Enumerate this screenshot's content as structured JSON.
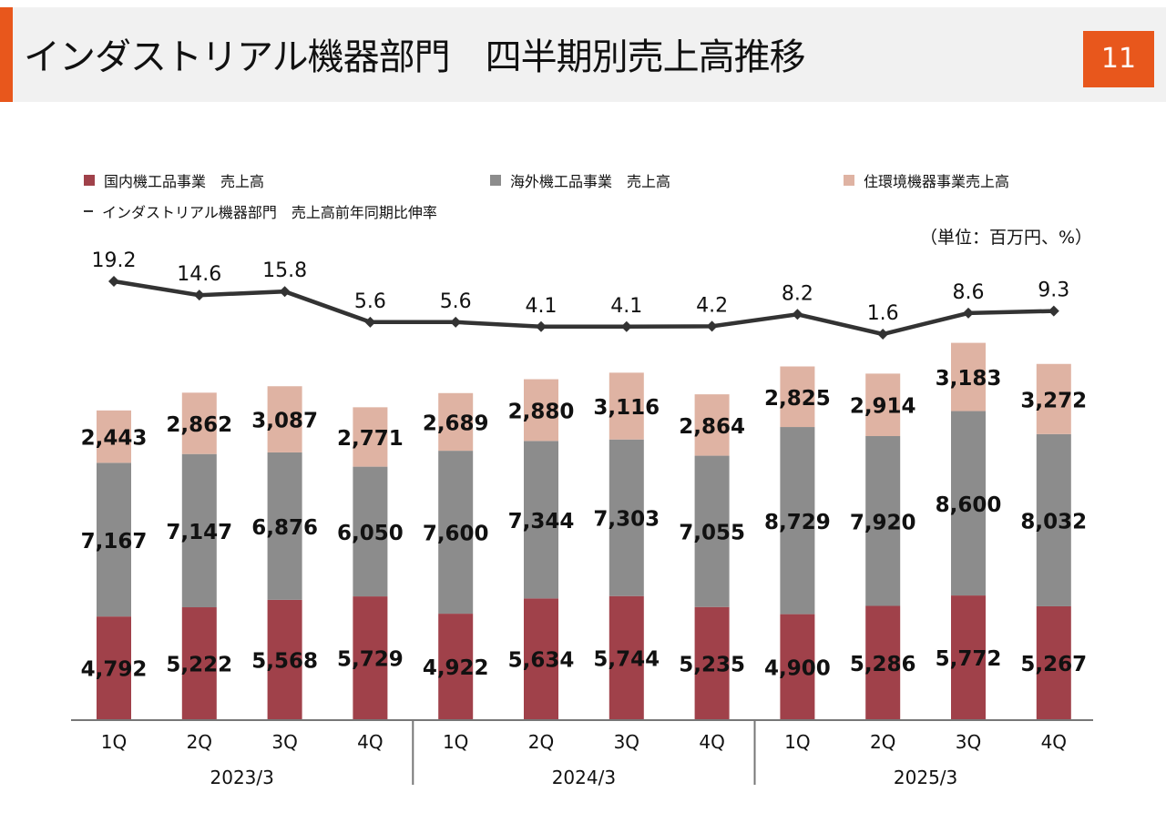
{
  "header": {
    "title": "インダストリアル機器部門　四半期別売上高推移",
    "page_number": "11"
  },
  "unit_note": "（単位：百万円、%）",
  "colors": {
    "domestic": "#a0414a",
    "overseas": "#8c8c8c",
    "housing": "#dfb3a3",
    "line": "#333333",
    "accent": "#e8571c"
  },
  "legend": {
    "domestic": "国内機工品事業　売上高",
    "overseas": "海外機工品事業　売上高",
    "housing": "住環境機器事業売上高",
    "growth": "インダストリアル機器部門　売上高前年同期比伸率"
  },
  "chart_data": {
    "type": "bar",
    "stacked": true,
    "categories": [
      "1Q",
      "2Q",
      "3Q",
      "4Q",
      "1Q",
      "2Q",
      "3Q",
      "4Q",
      "1Q",
      "2Q",
      "3Q",
      "4Q"
    ],
    "groups": [
      {
        "label": "2023/3",
        "quarters": 4
      },
      {
        "label": "2024/3",
        "quarters": 4
      },
      {
        "label": "2025/3",
        "quarters": 4
      }
    ],
    "series": [
      {
        "name": "国内機工品事業　売上高",
        "key": "domestic",
        "values": [
          4792,
          5222,
          5568,
          5729,
          4922,
          5634,
          5744,
          5235,
          4900,
          5286,
          5772,
          5267
        ],
        "labels": [
          "4,792",
          "5,222",
          "5,568",
          "5,729",
          "4,922",
          "5,634",
          "5,744",
          "5,235",
          "4,900",
          "5,286",
          "5,772",
          "5,267"
        ]
      },
      {
        "name": "海外機工品事業　売上高",
        "key": "overseas",
        "values": [
          7167,
          7147,
          6876,
          6050,
          7600,
          7344,
          7303,
          7055,
          8729,
          7920,
          8600,
          8032
        ],
        "labels": [
          "7,167",
          "7,147",
          "6,876",
          "6,050",
          "7,600",
          "7,344",
          "7,303",
          "7,055",
          "8,729",
          "7,920",
          "8,600",
          "8,032"
        ]
      },
      {
        "name": "住環境機器事業売上高",
        "key": "housing",
        "values": [
          2443,
          2862,
          3087,
          2771,
          2689,
          2880,
          3116,
          2864,
          2825,
          2914,
          3183,
          3272
        ],
        "labels": [
          "2,443",
          "2,862",
          "3,087",
          "2,771",
          "2,689",
          "2,880",
          "3,116",
          "2,864",
          "2,825",
          "2,914",
          "3,183",
          "3,272"
        ]
      }
    ],
    "line": {
      "name": "インダストリアル機器部門　売上高前年同期比伸率",
      "values": [
        19.2,
        14.6,
        15.8,
        5.6,
        5.6,
        4.1,
        4.1,
        4.2,
        8.2,
        1.6,
        8.6,
        9.3
      ],
      "labels": [
        "19.2",
        "14.6",
        "15.8",
        "5.6",
        "5.6",
        "4.1",
        "4.1",
        "4.2",
        "8.2",
        "1.6",
        "8.6",
        "9.3"
      ]
    }
  }
}
